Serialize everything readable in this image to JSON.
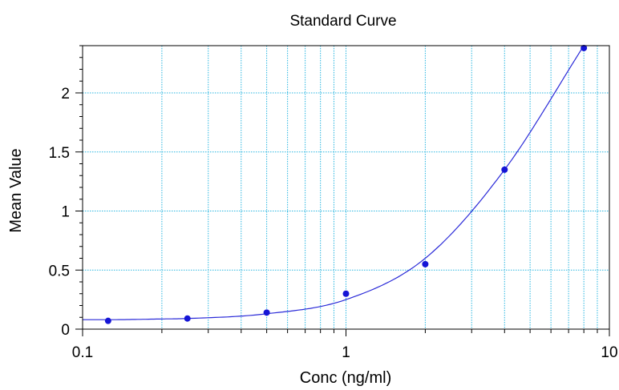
{
  "chart_data": {
    "type": "scatter",
    "title": "Standard Curve",
    "xlabel": "Conc (ng/ml)",
    "ylabel": "Mean Value",
    "x_scale": "log",
    "xlim": [
      0.1,
      10
    ],
    "ylim": [
      0,
      2.4
    ],
    "x_ticks": [
      "0.1",
      "1",
      "10"
    ],
    "y_ticks": [
      "0",
      "0.5",
      "1",
      "1.5",
      "2"
    ],
    "grid": true,
    "point_color": "#1515d6",
    "curve_color": "#2a2ad8",
    "grid_color": "#29b6e0",
    "points": [
      {
        "x": 0.125,
        "y": 0.07
      },
      {
        "x": 0.25,
        "y": 0.09
      },
      {
        "x": 0.5,
        "y": 0.14
      },
      {
        "x": 1,
        "y": 0.3
      },
      {
        "x": 2,
        "y": 0.55
      },
      {
        "x": 4,
        "y": 1.35
      },
      {
        "x": 8,
        "y": 2.38
      }
    ],
    "fit_curve": {
      "x": [
        0.1,
        0.125,
        0.2,
        0.25,
        0.5,
        1,
        2,
        4,
        8
      ],
      "y": [
        0.08,
        0.08,
        0.086,
        0.09,
        0.13,
        0.25,
        0.6,
        1.35,
        2.4
      ]
    }
  }
}
